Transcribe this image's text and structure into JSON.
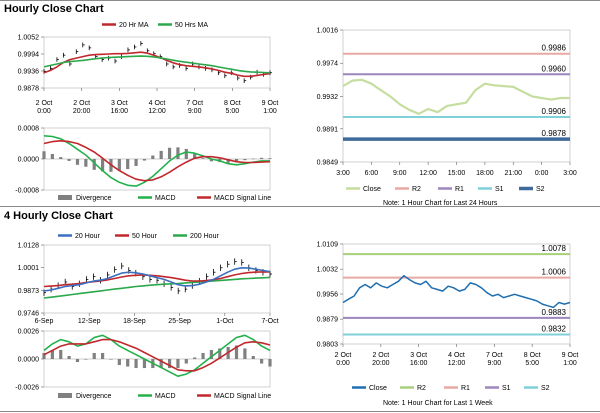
{
  "sections": {
    "hourly_title": "Hourly Close Chart",
    "four_hourly_title": "4 Hourly Close Chart",
    "hourly_note": "Note: 1 Hour Chart for Last 24 Hours",
    "week_note": "Note: 1 Hour Chart for Last 1 Week"
  },
  "colors": {
    "close_light": "#c5dea0",
    "close_dark": "#1f6fb0",
    "r2": "#a8cf7a",
    "r1": "#e8a9a3",
    "r1_purple": "#9c86bd",
    "s1": "#7fd0d8",
    "s2": "#3f6b9a",
    "ma20_red": "#c0282d",
    "ma50_green": "#2aa84a",
    "ma20_blue": "#3b6fc0",
    "ma200_green": "#2aa84a",
    "macd": "#22b14c",
    "signal": "#c0282d",
    "divergence": "#808080",
    "price": "#000000"
  },
  "chart_data": [
    {
      "id": "hourly_ma",
      "type": "line",
      "ylim": [
        0.9878,
        1.0052
      ],
      "yticks": [
        "1.0052",
        "0.9994",
        "0.9936",
        "0.9878"
      ],
      "xticks": [
        "2 Oct\n0:00",
        "2 Oct\n20:00",
        "3 Oct\n16:00",
        "4 Oct\n12:00",
        "7 Oct\n9:00",
        "8 Oct\n5:00",
        "9 Oct\n1:00"
      ],
      "legend": [
        "20 Hr MA",
        "50 Hrs MA"
      ],
      "price": [
        0.9935,
        0.9945,
        0.9975,
        0.999,
        0.996,
        1.0002,
        1.0025,
        1.0015,
        0.9985,
        0.9975,
        0.998,
        0.997,
        0.9985,
        1.0008,
        1.0018,
        1.003,
        1.0005,
        0.9995,
        0.9985,
        0.996,
        0.995,
        0.9955,
        0.9945,
        0.996,
        0.995,
        0.9945,
        0.994,
        0.993,
        0.992,
        0.993,
        0.9912,
        0.9903,
        0.9915,
        0.9932,
        0.9925,
        0.993
      ],
      "ma20": [
        0.993,
        0.9938,
        0.995,
        0.9965,
        0.9975,
        0.998,
        0.9985,
        0.999,
        0.9992,
        0.9993,
        0.9994,
        0.9995,
        0.9995,
        0.9996,
        0.9998,
        1.0,
        0.9997,
        0.999,
        0.9982,
        0.9972,
        0.9964,
        0.9958,
        0.9954,
        0.9952,
        0.995,
        0.9947,
        0.9943,
        0.9938,
        0.9932,
        0.9928,
        0.9922,
        0.9918,
        0.9918,
        0.9921,
        0.9924,
        0.9927
      ],
      "ma50": [
        0.995,
        0.9955,
        0.996,
        0.9965,
        0.9968,
        0.997,
        0.9972,
        0.9975,
        0.9978,
        0.998,
        0.9982,
        0.9983,
        0.9984,
        0.9985,
        0.9986,
        0.9987,
        0.9986,
        0.9984,
        0.9981,
        0.9977,
        0.9973,
        0.9969,
        0.9966,
        0.9963,
        0.996,
        0.9957,
        0.9954,
        0.995,
        0.9946,
        0.9942,
        0.9938,
        0.9935,
        0.9933,
        0.9932,
        0.9931,
        0.993
      ]
    },
    {
      "id": "hourly_macd",
      "type": "bar",
      "ylim": [
        -0.0008,
        0.0008
      ],
      "yticks": [
        "0.0008",
        "0.0000",
        "-0.0008"
      ],
      "legend": [
        "Divergence",
        "MACD",
        "MACD Signal Line"
      ],
      "macd": [
        0.0006,
        0.00058,
        0.00052,
        0.0004,
        0.00025,
        0.0001,
        -0.0001,
        -0.0003,
        -0.00048,
        -0.0006,
        -0.00068,
        -0.0007,
        -0.0006,
        -0.00045,
        -0.00025,
        -5e-05,
        0.0001,
        0.00018,
        0.00015,
        8e-05,
        0.0,
        -5e-05,
        -0.00012,
        -0.00015,
        -0.00012,
        -8e-05,
        -5e-05,
        -5e-05
      ],
      "signal": [
        0.0004,
        0.00045,
        0.00047,
        0.00045,
        0.0004,
        0.0003,
        0.00018,
        2e-05,
        -0.00015,
        -0.0003,
        -0.00042,
        -0.00052,
        -0.00056,
        -0.00054,
        -0.00046,
        -0.00034,
        -0.0002,
        -8e-05,
        2e-05,
        6e-05,
        6e-05,
        3e-05,
        -2e-05,
        -7e-05,
        -9e-05,
        -9e-05,
        -8e-05,
        -7e-05
      ]
    },
    {
      "id": "hourly_close_24h",
      "type": "line",
      "ylim": [
        0.9849,
        1.0016
      ],
      "yticks": [
        "1.0016",
        "0.9974",
        "0.9932",
        "0.9891",
        "0.9849"
      ],
      "xticks": [
        "3:00",
        "6:00",
        "9:00",
        "12:00",
        "15:00",
        "18:00",
        "21:00",
        "0:00",
        "3:00"
      ],
      "legend": [
        "Close",
        "R2",
        "R1",
        "S1",
        "S2"
      ],
      "levels": {
        "r2": 0.9986,
        "r1": 0.996,
        "s1": 0.9906,
        "s2": 0.9878
      },
      "level_labels": {
        "r2": "0.9986",
        "r1": "0.9960",
        "s1": "0.9906",
        "s2": "0.9878"
      },
      "close": [
        0.9945,
        0.9952,
        0.9953,
        0.9948,
        0.994,
        0.9932,
        0.9922,
        0.9915,
        0.991,
        0.9916,
        0.9912,
        0.992,
        0.9922,
        0.9924,
        0.994,
        0.9948,
        0.9946,
        0.9945,
        0.9944,
        0.9938,
        0.9932,
        0.993,
        0.9928,
        0.993,
        0.993
      ]
    },
    {
      "id": "four_hourly_ma",
      "type": "line",
      "ylim": [
        0.9746,
        1.0128
      ],
      "yticks": [
        "1.0128",
        "1.0001",
        "0.9873",
        "0.9746"
      ],
      "xticks": [
        "6-Sep",
        "12-Sep",
        "18-Sep",
        "25-Sep",
        "1-Oct",
        "7-Oct"
      ],
      "legend": [
        "20 Hour",
        "50 Hour",
        "200 Hour"
      ],
      "price": [
        0.986,
        0.988,
        0.99,
        0.992,
        0.9895,
        0.991,
        0.9935,
        0.995,
        0.993,
        0.996,
        0.999,
        1.001,
        0.9985,
        0.997,
        0.995,
        0.9935,
        0.993,
        0.991,
        0.989,
        0.987,
        0.988,
        0.99,
        0.9925,
        0.995,
        0.9975,
        1.0,
        1.002,
        1.0035,
        1.003,
        1.0,
        0.9985,
        0.9975,
        0.9965
      ],
      "ma20": [
        0.987,
        0.9875,
        0.9885,
        0.9895,
        0.99,
        0.9905,
        0.9915,
        0.9925,
        0.993,
        0.994,
        0.9955,
        0.997,
        0.9975,
        0.9972,
        0.9965,
        0.9955,
        0.9945,
        0.9935,
        0.992,
        0.9905,
        0.9898,
        0.99,
        0.9908,
        0.992,
        0.9935,
        0.9955,
        0.9975,
        0.9992,
        1.0,
        0.9998,
        0.9992,
        0.9985,
        0.9978
      ],
      "ma50": [
        0.9895,
        0.9897,
        0.99,
        0.9905,
        0.9908,
        0.9912,
        0.9918,
        0.9922,
        0.9926,
        0.9932,
        0.994,
        0.9948,
        0.9955,
        0.9958,
        0.996,
        0.9958,
        0.9955,
        0.995,
        0.9945,
        0.9938,
        0.993,
        0.9926,
        0.9925,
        0.9928,
        0.9933,
        0.994,
        0.995,
        0.996,
        0.9968,
        0.9973,
        0.9976,
        0.9977,
        0.9977
      ],
      "ma200": [
        0.983,
        0.9835,
        0.984,
        0.9845,
        0.985,
        0.9855,
        0.986,
        0.9865,
        0.987,
        0.9875,
        0.988,
        0.9885,
        0.989,
        0.9895,
        0.9898,
        0.9902,
        0.9905,
        0.9908,
        0.991,
        0.9912,
        0.9915,
        0.9918,
        0.992,
        0.9923,
        0.9926,
        0.9929,
        0.9932,
        0.9935,
        0.9938,
        0.994,
        0.9942,
        0.9944,
        0.9946
      ]
    },
    {
      "id": "four_hourly_macd",
      "type": "bar",
      "ylim": [
        -0.0026,
        0.0026
      ],
      "yticks": [
        "0.0026",
        "0.0000",
        "-0.0026"
      ],
      "legend": [
        "Divergence",
        "MACD",
        "MACD Signal Line"
      ],
      "macd": [
        0.0008,
        0.0014,
        0.0018,
        0.0016,
        0.0012,
        0.0014,
        0.002,
        0.0022,
        0.0018,
        0.0012,
        0.0008,
        0.0004,
        0.0,
        -0.0004,
        -0.0008,
        -0.0012,
        -0.0016,
        -0.0014,
        -0.001,
        -0.0004,
        0.0002,
        0.0008,
        0.0014,
        0.002,
        0.0022,
        0.0018,
        0.0012,
        0.0008
      ],
      "signal": [
        0.0004,
        0.0008,
        0.0012,
        0.0014,
        0.0014,
        0.0014,
        0.0016,
        0.0018,
        0.0018,
        0.0016,
        0.0013,
        0.001,
        0.0006,
        0.0002,
        -0.0002,
        -0.0006,
        -0.001,
        -0.0011,
        -0.0011,
        -0.0008,
        -0.0004,
        0.0001,
        0.0006,
        0.0011,
        0.0015,
        0.0016,
        0.0015,
        0.0013
      ]
    },
    {
      "id": "hourly_close_1w",
      "type": "line",
      "ylim": [
        0.9803,
        1.0109
      ],
      "yticks": [
        "1.0109",
        "1.0032",
        "0.9956",
        "0.9879",
        "0.9803"
      ],
      "xticks": [
        "2 Oct\n0:00",
        "2 Oct\n20:00",
        "3 Oct\n16:00",
        "4 Oct\n12:00",
        "7 Oct\n9:00",
        "8 Oct\n5:00",
        "9 Oct\n1:00"
      ],
      "legend": [
        "Close",
        "R2",
        "R1",
        "S1",
        "S2"
      ],
      "levels": {
        "r2": 1.0078,
        "r1": 1.0006,
        "s1": 0.9883,
        "s2": 0.9832
      },
      "level_labels": {
        "r2": "1.0078",
        "r1": "1.0006",
        "s1": "0.9883",
        "s2": "0.9832"
      },
      "close": [
        0.993,
        0.994,
        0.995,
        0.9975,
        0.9985,
        0.9975,
        0.999,
        0.998,
        0.9975,
        0.9985,
        0.9995,
        1.0012,
        1.0,
        0.999,
        0.9985,
        0.9995,
        0.9975,
        0.997,
        0.9965,
        0.998,
        0.9975,
        0.9965,
        0.997,
        0.999,
        0.9985,
        0.9975,
        0.996,
        0.995,
        0.9955,
        0.9945,
        0.995,
        0.9955,
        0.995,
        0.9945,
        0.994,
        0.9935,
        0.9925,
        0.992,
        0.9915,
        0.993,
        0.9925,
        0.993
      ]
    }
  ]
}
